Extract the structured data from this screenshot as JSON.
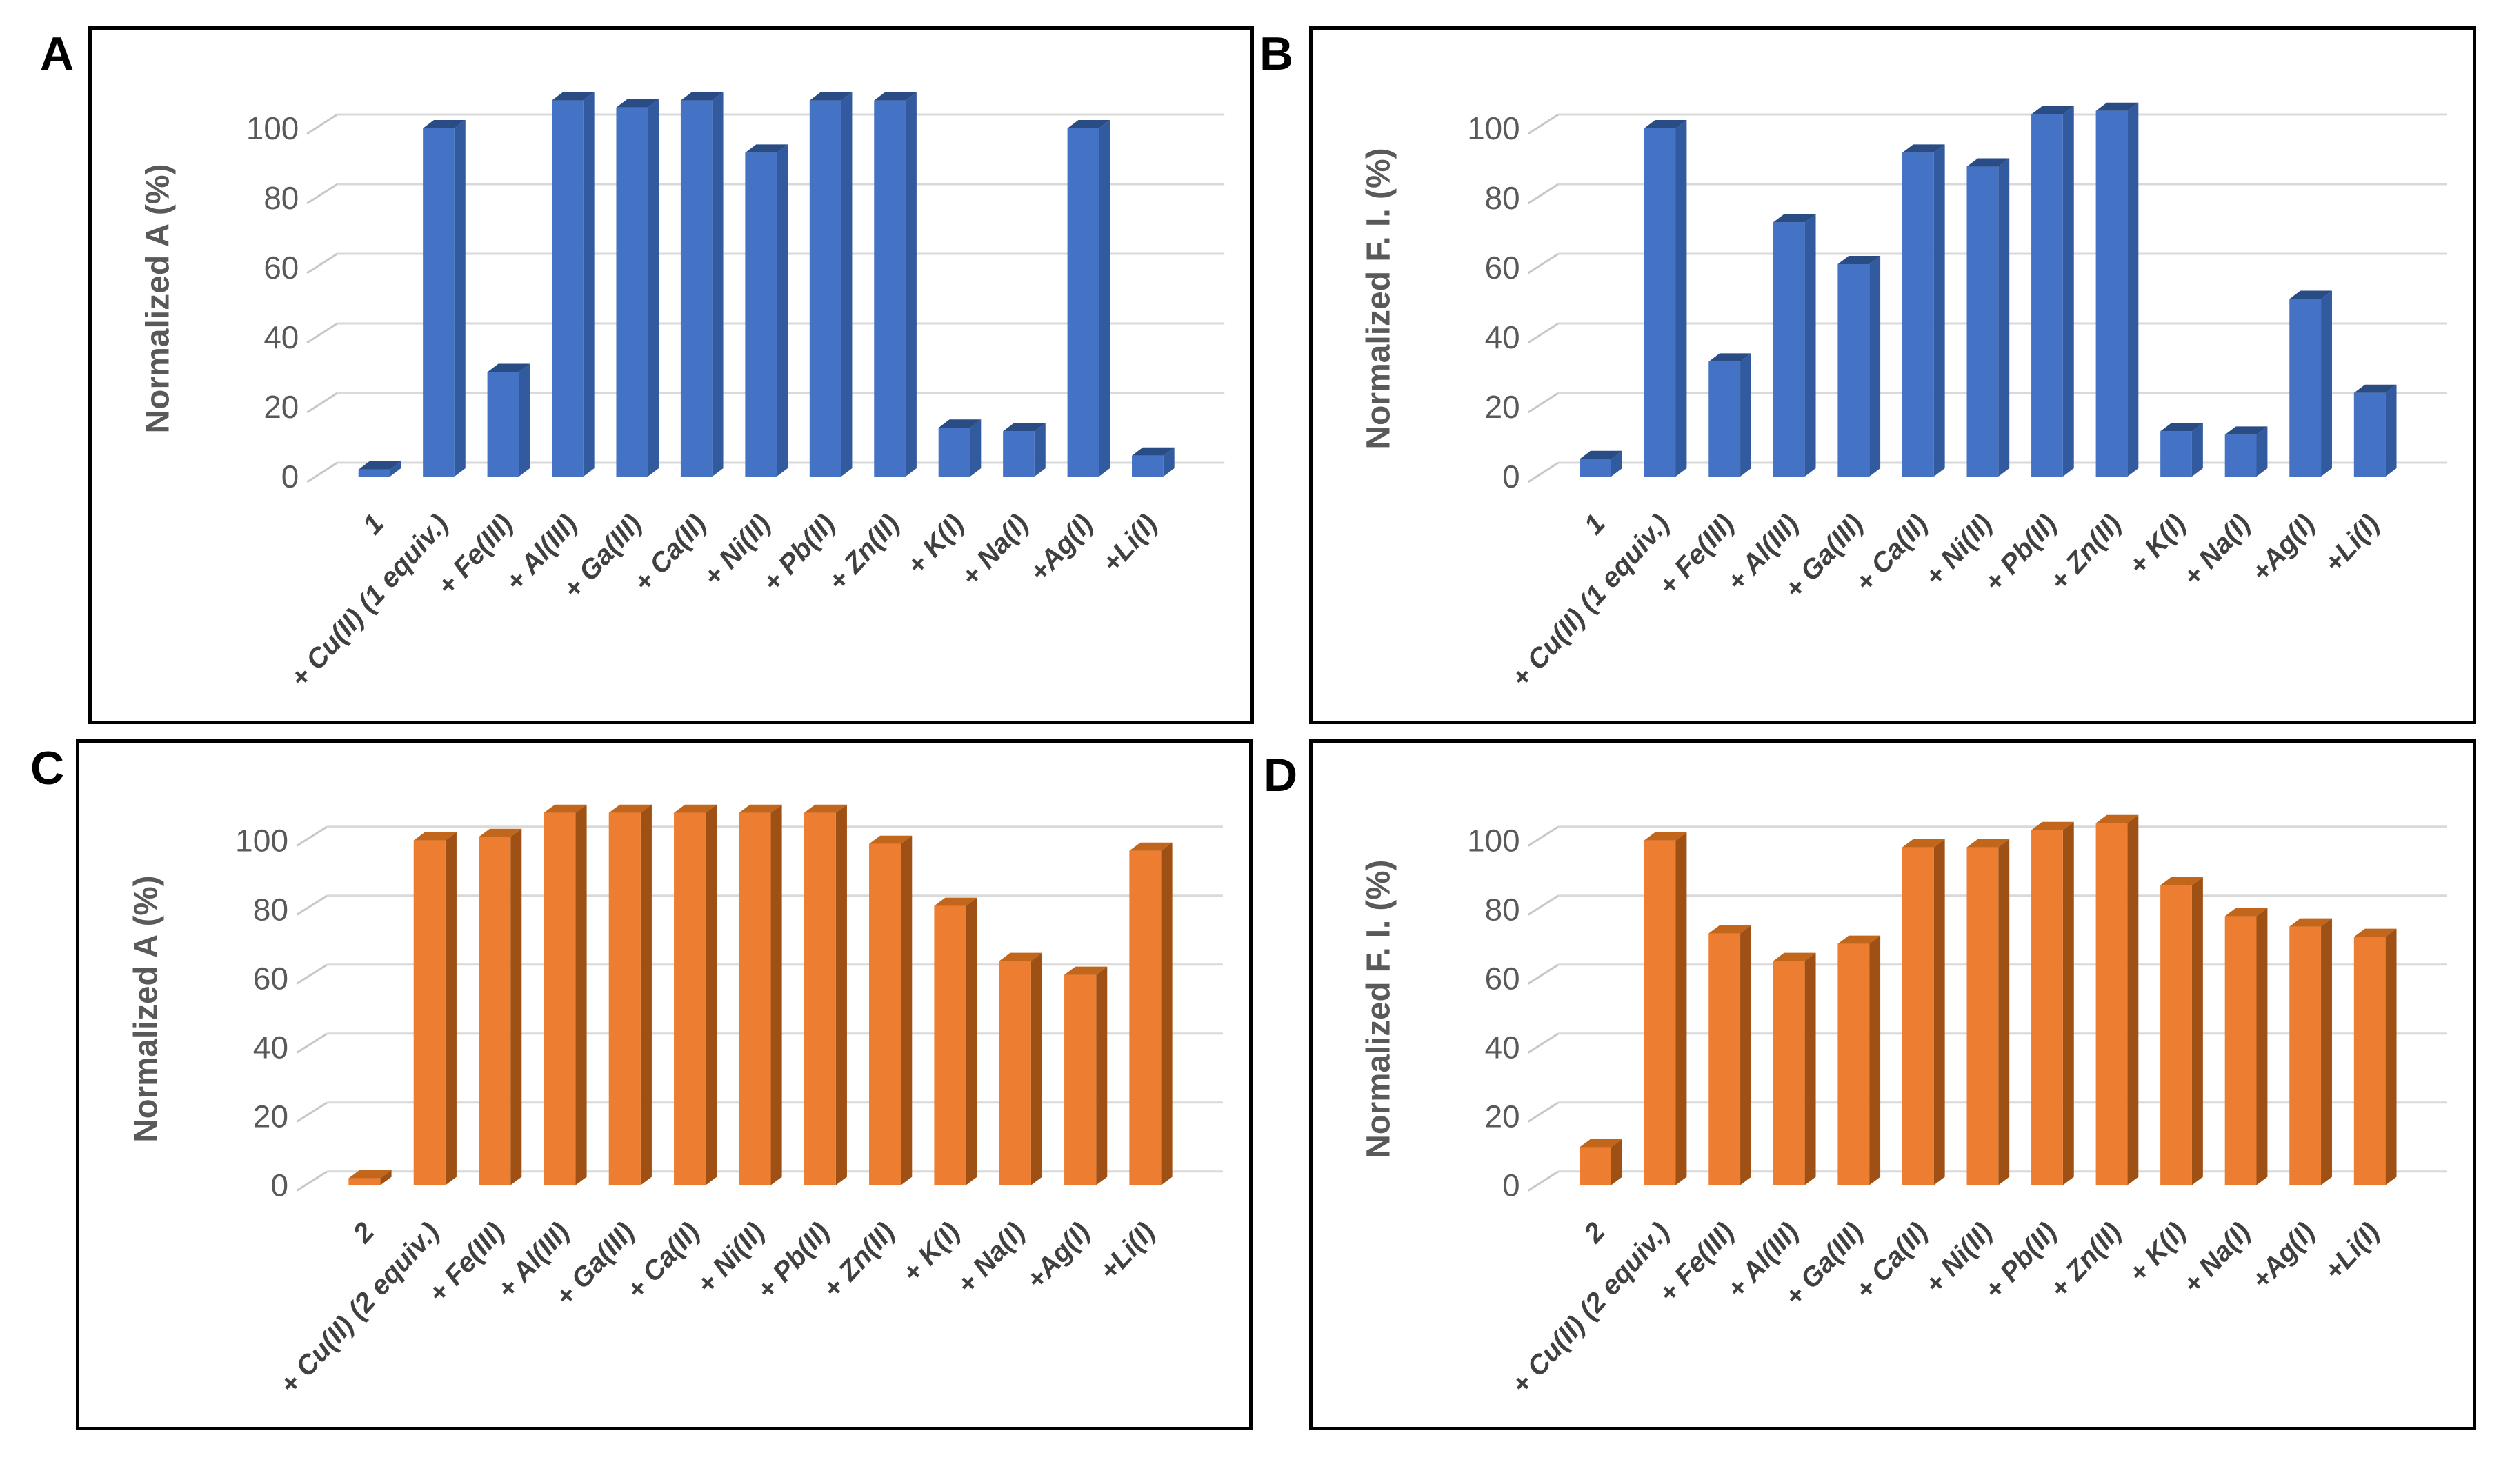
{
  "style": {
    "background": "#FFFFFF",
    "panel_border_color": "#000000",
    "panel_letter_color": "#000000",
    "grid_color": "#D9D9D9",
    "tick_diag_color": "#C8C8C8",
    "tick_label_color": "#595959",
    "axis_title_color": "#595959",
    "category_label_color": "#404040",
    "blue_front": "#4472C4",
    "orange_front": "#ED7D31"
  },
  "chart_data": [
    {
      "panel": "A",
      "type": "bar",
      "ylabel": "Normalized A (%)",
      "xlabel": "",
      "ylim": [
        0,
        110
      ],
      "yticks": [
        0,
        20,
        40,
        60,
        80,
        100
      ],
      "grid": true,
      "bar_color": {
        "front": "#4472C4",
        "top": "#2A4C84",
        "side": "#325A9E"
      },
      "categories": [
        "1",
        "+ Cu(II) (1 equiv.)",
        "+ Fe(III)",
        "+ Al(III)",
        "+ Ga(III)",
        "+ Ca(II)",
        "+ Ni(II)",
        "+ Pb(II)",
        "+ Zn(II)",
        "+ K(I)",
        "+ Na(I)",
        "+Ag(I)",
        "+Li(I)"
      ],
      "values": [
        2,
        100,
        30,
        108,
        106,
        108,
        93,
        108,
        108,
        14,
        13,
        100,
        6
      ]
    },
    {
      "panel": "B",
      "type": "bar",
      "ylabel": "Normalized F. I. (%)",
      "xlabel": "",
      "ylim": [
        0,
        110
      ],
      "yticks": [
        0,
        20,
        40,
        60,
        80,
        100
      ],
      "grid": true,
      "bar_color": {
        "front": "#4472C4",
        "top": "#2A4C84",
        "side": "#325A9E"
      },
      "categories": [
        "1",
        "+ Cu(II) (1 equiv.)",
        "+ Fe(III)",
        "+ Al(III)",
        "+ Ga(III)",
        "+ Ca(II)",
        "+ Ni(II)",
        "+ Pb(II)",
        "+ Zn(II)",
        "+ K(I)",
        "+ Na(I)",
        "+Ag(I)",
        "+Li(I)"
      ],
      "values": [
        5,
        100,
        33,
        73,
        61,
        93,
        89,
        104,
        105,
        13,
        12,
        51,
        24
      ]
    },
    {
      "panel": "C",
      "type": "bar",
      "ylabel": "Normalized A (%)",
      "xlabel": "",
      "ylim": [
        0,
        110
      ],
      "yticks": [
        0,
        20,
        40,
        60,
        80,
        100
      ],
      "grid": true,
      "bar_color": {
        "front": "#ED7D31",
        "top": "#C2661B",
        "side": "#9F5014"
      },
      "categories": [
        "2",
        "+ Cu(II) (2 equiv.)",
        "+ Fe(III)",
        "+ Al(III)",
        "+ Ga(III)",
        "+ Ca(II)",
        "+ Ni(II)",
        "+ Pb(II)",
        "+ Zn(II)",
        "+ K(I)",
        "+ Na(I)",
        "+Ag(I)",
        "+Li(I)"
      ],
      "values": [
        2,
        100,
        101,
        108,
        108,
        108,
        108,
        108,
        99,
        81,
        65,
        61,
        97
      ]
    },
    {
      "panel": "D",
      "type": "bar",
      "ylabel": "Normalized F. I. (%)",
      "xlabel": "",
      "ylim": [
        0,
        110
      ],
      "yticks": [
        0,
        20,
        40,
        60,
        80,
        100
      ],
      "grid": true,
      "bar_color": {
        "front": "#ED7D31",
        "top": "#C2661B",
        "side": "#9F5014"
      },
      "categories": [
        "2",
        "+ Cu(II) (2 equiv.)",
        "+ Fe(III)",
        "+ Al(III)",
        "+ Ga(III)",
        "+ Ca(II)",
        "+ Ni(II)",
        "+ Pb(II)",
        "+ Zn(II)",
        "+ K(I)",
        "+ Na(I)",
        "+Ag(I)",
        "+Li(I)"
      ],
      "values": [
        11,
        100,
        73,
        65,
        70,
        98,
        98,
        103,
        105,
        87,
        78,
        75,
        72
      ]
    }
  ]
}
